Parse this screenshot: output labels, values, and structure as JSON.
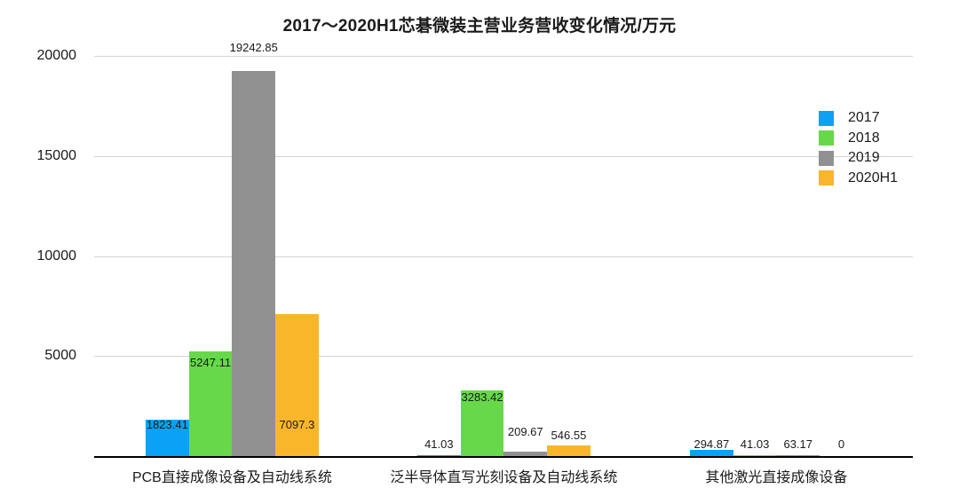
{
  "chart_data": {
    "type": "bar",
    "title": "2017～2020H1芯碁微装主营业务营收变化情况/万元",
    "xlabel": "",
    "ylabel": "",
    "ylim": [
      0,
      20000
    ],
    "yticks": [
      5000,
      10000,
      15000,
      20000
    ],
    "ytick_labels": [
      "5000",
      "10000",
      "15000",
      "20000"
    ],
    "grid": true,
    "legend_position": "right",
    "categories": [
      "PCB直接成像设备及自动线系统",
      "泛半导体直写光刻设备及自动线系统",
      "其他激光直接成像设备"
    ],
    "series": [
      {
        "name": "2017",
        "color": "#0aa2f5",
        "values": [
          1823.41,
          41.03,
          294.87
        ],
        "labels": [
          "1823.41",
          "41.03",
          "294.87"
        ]
      },
      {
        "name": "2018",
        "color": "#67d84a",
        "values": [
          5247.11,
          3283.42,
          41.03
        ],
        "labels": [
          "5247.11",
          "3283.42",
          "41.03"
        ]
      },
      {
        "name": "2019",
        "color": "#919191",
        "values": [
          19242.85,
          209.67,
          63.17
        ],
        "labels": [
          "19242.85",
          "209.67",
          "63.17"
        ]
      },
      {
        "name": "2020H1",
        "color": "#f9b62a",
        "values": [
          7097.3,
          546.55,
          0
        ],
        "labels": [
          "7097.3",
          "546.55",
          "0"
        ]
      }
    ]
  }
}
